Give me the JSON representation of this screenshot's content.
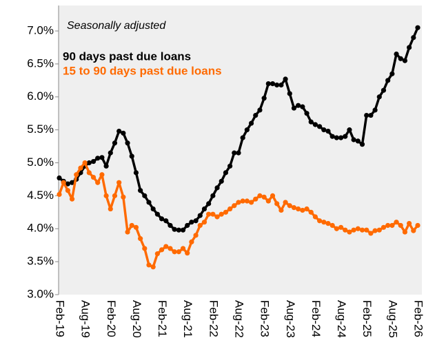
{
  "chart_data": {
    "type": "line",
    "annotation": "Seasonally adjusted",
    "categories": [
      "Feb-19",
      null,
      null,
      null,
      null,
      null,
      "Aug-19",
      null,
      null,
      null,
      null,
      null,
      "Feb-20",
      null,
      null,
      null,
      null,
      null,
      "Aug-20",
      null,
      null,
      null,
      null,
      null,
      "Feb-21",
      null,
      null,
      null,
      null,
      null,
      "Aug-21",
      null,
      null,
      null,
      null,
      null,
      "Feb-22",
      null,
      null,
      null,
      null,
      null,
      "Aug-22",
      null,
      null,
      null,
      null,
      null,
      "Feb-23",
      null,
      null,
      null,
      null,
      null,
      "Aug-23",
      null,
      null,
      null,
      null,
      null,
      "Feb-24",
      null,
      null,
      null,
      null,
      null,
      "Aug-24",
      null,
      null,
      null,
      null,
      null,
      "Feb-25",
      null,
      null,
      null,
      null,
      null,
      "Aug-25",
      null,
      null,
      null,
      null,
      null,
      "Feb-26"
    ],
    "series": [
      {
        "name": "90 days past due loans",
        "color": "#000000",
        "values": [
          4.77,
          4.72,
          4.68,
          4.7,
          4.75,
          4.85,
          4.95,
          5.0,
          5.02,
          5.07,
          5.08,
          4.95,
          5.15,
          5.3,
          5.48,
          5.45,
          5.3,
          5.1,
          4.85,
          4.58,
          4.5,
          4.4,
          4.3,
          4.22,
          4.15,
          4.12,
          4.05,
          3.99,
          3.98,
          3.98,
          4.05,
          4.1,
          4.12,
          4.2,
          4.3,
          4.38,
          4.5,
          4.62,
          4.72,
          4.85,
          4.95,
          5.15,
          5.15,
          5.38,
          5.5,
          5.6,
          5.72,
          5.8,
          5.98,
          6.2,
          6.2,
          6.18,
          6.18,
          6.27,
          6.05,
          5.83,
          5.87,
          5.85,
          5.75,
          5.62,
          5.58,
          5.55,
          5.5,
          5.48,
          5.4,
          5.38,
          5.38,
          5.4,
          5.5,
          5.35,
          5.33,
          5.28,
          5.72,
          5.72,
          5.8,
          6.0,
          6.1,
          6.25,
          6.35,
          6.65,
          6.58,
          6.55,
          6.75,
          6.9,
          7.05
        ]
      },
      {
        "name": "15 to 90 days past due loans",
        "color": "#ff6a00",
        "values": [
          4.52,
          4.7,
          4.58,
          4.45,
          4.82,
          4.92,
          5.0,
          4.85,
          4.78,
          4.7,
          4.82,
          4.5,
          4.3,
          4.5,
          4.7,
          4.48,
          3.95,
          4.05,
          4.02,
          3.85,
          3.7,
          3.45,
          3.42,
          3.62,
          3.68,
          3.73,
          3.7,
          3.65,
          3.65,
          3.7,
          3.63,
          3.8,
          3.9,
          4.05,
          4.1,
          4.22,
          4.22,
          4.18,
          4.22,
          4.25,
          4.3,
          4.35,
          4.4,
          4.42,
          4.42,
          4.4,
          4.45,
          4.5,
          4.48,
          4.42,
          4.5,
          4.38,
          4.28,
          4.4,
          4.35,
          4.32,
          4.3,
          4.28,
          4.3,
          4.25,
          4.18,
          4.12,
          4.1,
          4.08,
          4.05,
          4.0,
          4.02,
          3.98,
          3.95,
          3.98,
          4.0,
          3.98,
          3.98,
          3.93,
          3.97,
          3.98,
          4.02,
          4.05,
          4.05,
          4.1,
          4.05,
          3.95,
          4.08,
          3.97,
          4.05
        ]
      }
    ],
    "ylim": [
      3,
      7
    ],
    "yticks": [
      {
        "value": 3,
        "label": "3.0%"
      },
      {
        "value": 3.5,
        "label": "3.5%"
      },
      {
        "value": 4,
        "label": "4.0%"
      },
      {
        "value": 4.5,
        "label": "4.5%"
      },
      {
        "value": 5,
        "label": "5.0%"
      },
      {
        "value": 5.5,
        "label": "5.5%"
      },
      {
        "value": 6,
        "label": "6.0%"
      },
      {
        "value": 6.5,
        "label": "6.5%"
      },
      {
        "value": 7,
        "label": "7.0%"
      }
    ],
    "plot_background": "#efefef"
  }
}
